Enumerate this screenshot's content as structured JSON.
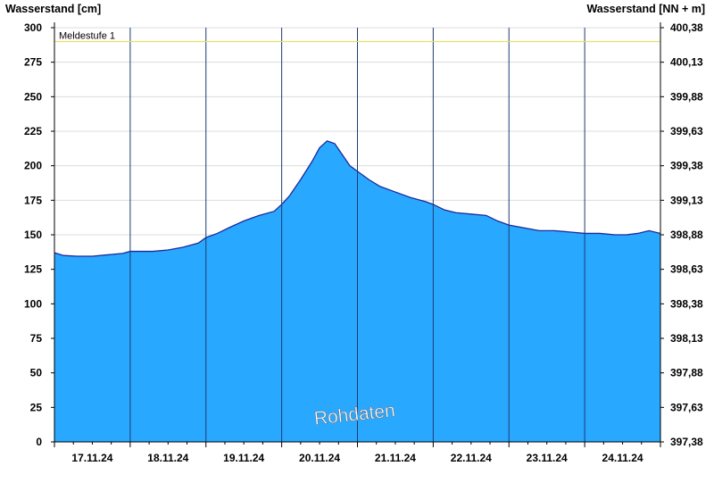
{
  "chart_data": {
    "type": "area",
    "ylabel_left": "Wasserstand [cm]",
    "ylabel_right": "Wasserstand [NN + m]",
    "ylim": [
      0,
      300
    ],
    "y_ticks_left": [
      "0",
      "25",
      "50",
      "75",
      "100",
      "125",
      "150",
      "175",
      "200",
      "225",
      "250",
      "275",
      "300"
    ],
    "y_ticks_right": [
      "397,38",
      "397,63",
      "397,88",
      "398,13",
      "398,38",
      "398,63",
      "398,88",
      "399,13",
      "399,38",
      "399,63",
      "399,88",
      "400,13",
      "400,38"
    ],
    "x_labels": [
      "17.11.24",
      "18.11.24",
      "19.11.24",
      "20.11.24",
      "21.11.24",
      "22.11.24",
      "23.11.24",
      "24.11.24"
    ],
    "x_range_days": [
      0,
      8
    ],
    "reference_line": {
      "label": "Meldestufe 1",
      "value": 290,
      "color": "#e8df6a"
    },
    "watermark": "Rohdaten",
    "series": [
      {
        "color": "#29a8ff",
        "line_color": "#1b2a9a",
        "points": [
          [
            0,
            137
          ],
          [
            0.12,
            135
          ],
          [
            0.3,
            134.5
          ],
          [
            0.5,
            134.5
          ],
          [
            0.7,
            135.5
          ],
          [
            0.9,
            136.5
          ],
          [
            1.0,
            138
          ],
          [
            1.3,
            138
          ],
          [
            1.5,
            139
          ],
          [
            1.7,
            141
          ],
          [
            1.9,
            144
          ],
          [
            2.0,
            148
          ],
          [
            2.15,
            151
          ],
          [
            2.3,
            155
          ],
          [
            2.5,
            160
          ],
          [
            2.7,
            164
          ],
          [
            2.9,
            167
          ],
          [
            3.0,
            172
          ],
          [
            3.1,
            178
          ],
          [
            3.25,
            190
          ],
          [
            3.4,
            203
          ],
          [
            3.5,
            213
          ],
          [
            3.6,
            218
          ],
          [
            3.7,
            216
          ],
          [
            3.8,
            208
          ],
          [
            3.9,
            200
          ],
          [
            4.0,
            196
          ],
          [
            4.15,
            190
          ],
          [
            4.3,
            185
          ],
          [
            4.5,
            181
          ],
          [
            4.7,
            177
          ],
          [
            4.9,
            174
          ],
          [
            5.0,
            172
          ],
          [
            5.15,
            168
          ],
          [
            5.3,
            166
          ],
          [
            5.5,
            165
          ],
          [
            5.7,
            164
          ],
          [
            5.85,
            160
          ],
          [
            6.0,
            157
          ],
          [
            6.2,
            155
          ],
          [
            6.4,
            153
          ],
          [
            6.6,
            153
          ],
          [
            6.8,
            152
          ],
          [
            7.0,
            151
          ],
          [
            7.2,
            151
          ],
          [
            7.4,
            150
          ],
          [
            7.55,
            150
          ],
          [
            7.7,
            151
          ],
          [
            7.85,
            153
          ],
          [
            8.0,
            151
          ]
        ]
      }
    ]
  }
}
